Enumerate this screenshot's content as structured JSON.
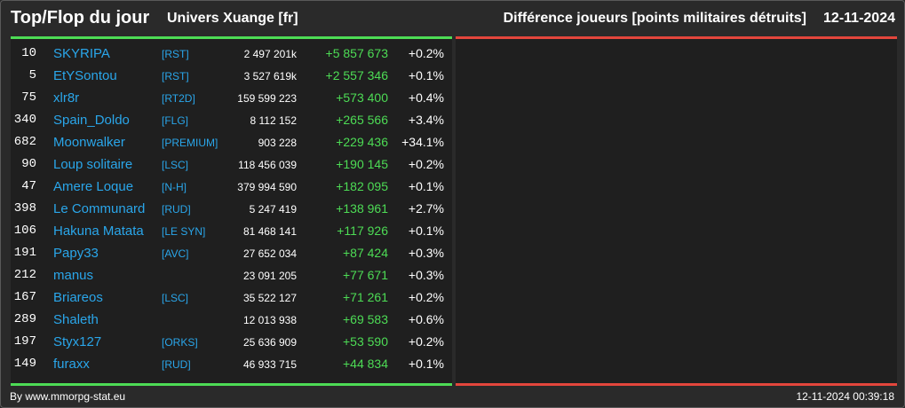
{
  "header": {
    "title": "Top/Flop du jour",
    "universe": "Univers Xuange [fr]",
    "subtitle": "Différence joueurs [points militaires détruits]",
    "date": "12-11-2024"
  },
  "colors": {
    "background": "#2a2a2a",
    "panel": "#1f1f1f",
    "top_accent": "#4ddc55",
    "flop_accent": "#e3463c",
    "player_link": "#2aa6ea",
    "positive_diff": "#4ddc55"
  },
  "top_players": [
    {
      "rank": "10",
      "name": "SKYRIPA",
      "alliance": "[RST]",
      "points": "2 497 201k",
      "diff": "+5 857 673",
      "pct": "+0.2%"
    },
    {
      "rank": "5",
      "name": "EtYSontou",
      "alliance": "[RST]",
      "points": "3 527 619k",
      "diff": "+2 557 346",
      "pct": "+0.1%"
    },
    {
      "rank": "75",
      "name": "xlr8r",
      "alliance": "[RT2D]",
      "points": "159 599 223",
      "diff": "+573 400",
      "pct": "+0.4%"
    },
    {
      "rank": "340",
      "name": "Spain_Doldo",
      "alliance": "[FLG]",
      "points": "8 112 152",
      "diff": "+265 566",
      "pct": "+3.4%"
    },
    {
      "rank": "682",
      "name": "Moonwalker",
      "alliance": "[PREMIUM]",
      "points": "903 228",
      "diff": "+229 436",
      "pct": "+34.1%"
    },
    {
      "rank": "90",
      "name": "Loup solitaire",
      "alliance": "[LSC]",
      "points": "118 456 039",
      "diff": "+190 145",
      "pct": "+0.2%"
    },
    {
      "rank": "47",
      "name": "Amere Loque",
      "alliance": "[N-H]",
      "points": "379 994 590",
      "diff": "+182 095",
      "pct": "+0.1%"
    },
    {
      "rank": "398",
      "name": "Le Communard",
      "alliance": "[RUD]",
      "points": "5 247 419",
      "diff": "+138 961",
      "pct": "+2.7%"
    },
    {
      "rank": "106",
      "name": "Hakuna Matata",
      "alliance": "[LE SYN]",
      "points": "81 468 141",
      "diff": "+117 926",
      "pct": "+0.1%"
    },
    {
      "rank": "191",
      "name": "Papy33",
      "alliance": "[AVC]",
      "points": "27 652 034",
      "diff": "+87 424",
      "pct": "+0.3%"
    },
    {
      "rank": "212",
      "name": "manus",
      "alliance": "",
      "points": "23 091 205",
      "diff": "+77 671",
      "pct": "+0.3%"
    },
    {
      "rank": "167",
      "name": "Briareos",
      "alliance": "[LSC]",
      "points": "35 522 127",
      "diff": "+71 261",
      "pct": "+0.2%"
    },
    {
      "rank": "289",
      "name": "Shaleth",
      "alliance": "",
      "points": "12 013 938",
      "diff": "+69 583",
      "pct": "+0.6%"
    },
    {
      "rank": "197",
      "name": "Styx127",
      "alliance": "[ORKS]",
      "points": "25 636 909",
      "diff": "+53 590",
      "pct": "+0.2%"
    },
    {
      "rank": "149",
      "name": "furaxx",
      "alliance": "[RUD]",
      "points": "46 933 715",
      "diff": "+44 834",
      "pct": "+0.1%"
    }
  ],
  "flop_players": [],
  "footer": {
    "credit": "By www.mmorpg-stat.eu",
    "timestamp": "12-11-2024 00:39:18"
  }
}
